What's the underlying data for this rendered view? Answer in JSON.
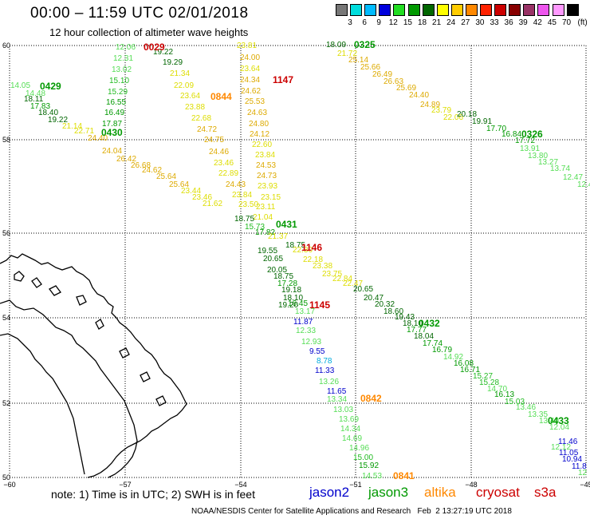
{
  "title": "00:00 – 11:59 UTC 02/01/2018",
  "subtitle": "12 hour collection of altimeter wave heights",
  "scale": {
    "unit_label": "(ft)",
    "labels": [
      "3",
      "6",
      "9",
      "12",
      "15",
      "18",
      "21",
      "24",
      "27",
      "30",
      "33",
      "36",
      "39",
      "42",
      "45",
      "70"
    ],
    "colors": [
      "#777777",
      "#00dddd",
      "#00bbff",
      "#0000dd",
      "#22dd22",
      "#009900",
      "#006600",
      "#ffff00",
      "#ffcc00",
      "#ff8800",
      "#ff2200",
      "#cc0000",
      "#880000",
      "#993366",
      "#ee55ee",
      "#ff99ff",
      "#000000"
    ]
  },
  "axes": {
    "lat_labels": [
      "60",
      "58",
      "56",
      "54",
      "52",
      "50"
    ],
    "lon_labels": [
      "−60",
      "−57",
      "−54",
      "−51",
      "−48",
      "−45"
    ]
  },
  "note": "note: 1) Time is in UTC; 2) SWH is in feet",
  "legend": [
    {
      "name": "jason2",
      "color": "#0000cc"
    },
    {
      "name": "jason3",
      "color": "#009900"
    },
    {
      "name": "altika",
      "color": "#ff8800"
    },
    {
      "name": "cryosat",
      "color": "#cc0000"
    },
    {
      "name": "s3a",
      "color": "#cc0000"
    }
  ],
  "credit": "NOAA/NESDIS Center for Satellite Applications and Research   Feb  2 13:27:19 UTC 2018",
  "time_labels": [
    {
      "text": "0029",
      "color": "#cc0000"
    },
    {
      "text": "0325",
      "color": "#009900"
    },
    {
      "text": "1147",
      "color": "#cc0000"
    },
    {
      "text": "0429",
      "color": "#009900"
    },
    {
      "text": "0844",
      "color": "#ff8800"
    },
    {
      "text": "0430",
      "color": "#009900"
    },
    {
      "text": "0326",
      "color": "#009900"
    },
    {
      "text": "0431",
      "color": "#009900"
    },
    {
      "text": "1146",
      "color": "#cc0000"
    },
    {
      "text": "1145",
      "color": "#cc0000"
    },
    {
      "text": "0432",
      "color": "#009900"
    },
    {
      "text": "0842",
      "color": "#ff8800"
    },
    {
      "text": "0433",
      "color": "#009900"
    },
    {
      "text": "0841",
      "color": "#ff8800"
    }
  ],
  "observations": [
    {
      "v": "12.06",
      "c": "#55dd55"
    },
    {
      "v": "12.31",
      "c": "#55dd55"
    },
    {
      "v": "13.02",
      "c": "#55dd55"
    },
    {
      "v": "15.10",
      "c": "#22bb22"
    },
    {
      "v": "15.29",
      "c": "#22bb22"
    },
    {
      "v": "16.55",
      "c": "#009900"
    },
    {
      "v": "16.49",
      "c": "#009900"
    },
    {
      "v": "17.87",
      "c": "#009900"
    },
    {
      "v": "19.22",
      "c": "#006600"
    },
    {
      "v": "19.29",
      "c": "#006600"
    },
    {
      "v": "21.34",
      "c": "#dddd00"
    },
    {
      "v": "22.09",
      "c": "#dddd00"
    },
    {
      "v": "23.64",
      "c": "#dddd00"
    },
    {
      "v": "23.88",
      "c": "#dddd00"
    },
    {
      "v": "22.68",
      "c": "#dddd00"
    },
    {
      "v": "24.72",
      "c": "#ddaa00"
    },
    {
      "v": "24.75",
      "c": "#ddaa00"
    },
    {
      "v": "24.46",
      "c": "#ddaa00"
    },
    {
      "v": "23.46",
      "c": "#dddd00"
    },
    {
      "v": "22.89",
      "c": "#dddd00"
    },
    {
      "v": "24.43",
      "c": "#ddaa00"
    },
    {
      "v": "23.84",
      "c": "#dddd00"
    },
    {
      "v": "23.50",
      "c": "#dddd00"
    },
    {
      "v": "14.05",
      "c": "#55dd55"
    },
    {
      "v": "14.48",
      "c": "#55dd55"
    },
    {
      "v": "18.11",
      "c": "#006600"
    },
    {
      "v": "17.83",
      "c": "#009900"
    },
    {
      "v": "18.40",
      "c": "#006600"
    },
    {
      "v": "19.22",
      "c": "#006600"
    },
    {
      "v": "21.14",
      "c": "#dddd00"
    },
    {
      "v": "22.71",
      "c": "#dddd00"
    },
    {
      "v": "24.40",
      "c": "#ddaa00"
    },
    {
      "v": "24.04",
      "c": "#ddaa00"
    },
    {
      "v": "26.42",
      "c": "#ddaa00"
    },
    {
      "v": "26.68",
      "c": "#ddaa00"
    },
    {
      "v": "24.62",
      "c": "#ddaa00"
    },
    {
      "v": "25.64",
      "c": "#ddaa00"
    },
    {
      "v": "25.64",
      "c": "#ddaa00"
    },
    {
      "v": "23.44",
      "c": "#dddd00"
    },
    {
      "v": "23.46",
      "c": "#dddd00"
    },
    {
      "v": "21.62",
      "c": "#dddd00"
    },
    {
      "v": "23.81",
      "c": "#dddd00"
    },
    {
      "v": "24.00",
      "c": "#ddaa00"
    },
    {
      "v": "23.64",
      "c": "#dddd00"
    },
    {
      "v": "24.34",
      "c": "#ddaa00"
    },
    {
      "v": "24.62",
      "c": "#ddaa00"
    },
    {
      "v": "25.53",
      "c": "#ddaa00"
    },
    {
      "v": "24.63",
      "c": "#ddaa00"
    },
    {
      "v": "24.80",
      "c": "#ddaa00"
    },
    {
      "v": "24.12",
      "c": "#ddaa00"
    },
    {
      "v": "22.60",
      "c": "#dddd00"
    },
    {
      "v": "23.84",
      "c": "#dddd00"
    },
    {
      "v": "24.53",
      "c": "#ddaa00"
    },
    {
      "v": "24.73",
      "c": "#ddaa00"
    },
    {
      "v": "23.93",
      "c": "#dddd00"
    },
    {
      "v": "23.15",
      "c": "#dddd00"
    },
    {
      "v": "23.11",
      "c": "#dddd00"
    },
    {
      "v": "21.04",
      "c": "#dddd00"
    },
    {
      "v": "18.09",
      "c": "#006600"
    },
    {
      "v": "21.72",
      "c": "#dddd00"
    },
    {
      "v": "25.14",
      "c": "#ddaa00"
    },
    {
      "v": "25.66",
      "c": "#ddaa00"
    },
    {
      "v": "26.49",
      "c": "#ddaa00"
    },
    {
      "v": "26.63",
      "c": "#ddaa00"
    },
    {
      "v": "25.69",
      "c": "#ddaa00"
    },
    {
      "v": "24.40",
      "c": "#ddaa00"
    },
    {
      "v": "24.89",
      "c": "#ddaa00"
    },
    {
      "v": "23.79",
      "c": "#dddd00"
    },
    {
      "v": "22.06",
      "c": "#dddd00"
    },
    {
      "v": "20.18",
      "c": "#006600"
    },
    {
      "v": "19.91",
      "c": "#006600"
    },
    {
      "v": "17.70",
      "c": "#009900"
    },
    {
      "v": "16.84",
      "c": "#009900"
    },
    {
      "v": "17.72",
      "c": "#009900"
    },
    {
      "v": "13.91",
      "c": "#55dd55"
    },
    {
      "v": "13.80",
      "c": "#55dd55"
    },
    {
      "v": "13.27",
      "c": "#55dd55"
    },
    {
      "v": "13.74",
      "c": "#55dd55"
    },
    {
      "v": "12.47",
      "c": "#55dd55"
    },
    {
      "v": "12.4",
      "c": "#55dd55"
    },
    {
      "v": "18.75",
      "c": "#006600"
    },
    {
      "v": "15.73",
      "c": "#22bb22"
    },
    {
      "v": "17.82",
      "c": "#009900"
    },
    {
      "v": "21.37",
      "c": "#dddd00"
    },
    {
      "v": "18.75",
      "c": "#006600"
    },
    {
      "v": "19.55",
      "c": "#006600"
    },
    {
      "v": "20.65",
      "c": "#006600"
    },
    {
      "v": "22.30",
      "c": "#dddd00"
    },
    {
      "v": "22.18",
      "c": "#dddd00"
    },
    {
      "v": "23.38",
      "c": "#dddd00"
    },
    {
      "v": "23.75",
      "c": "#dddd00"
    },
    {
      "v": "22.84",
      "c": "#dddd00"
    },
    {
      "v": "22.47",
      "c": "#dddd00"
    },
    {
      "v": "20.65",
      "c": "#006600"
    },
    {
      "v": "20.47",
      "c": "#006600"
    },
    {
      "v": "20.32",
      "c": "#006600"
    },
    {
      "v": "18.60",
      "c": "#006600"
    },
    {
      "v": "19.43",
      "c": "#006600"
    },
    {
      "v": "18.10",
      "c": "#006600"
    },
    {
      "v": "17.77",
      "c": "#009900"
    },
    {
      "v": "18.04",
      "c": "#006600"
    },
    {
      "v": "17.74",
      "c": "#009900"
    },
    {
      "v": "16.79",
      "c": "#009900"
    },
    {
      "v": "14.92",
      "c": "#55dd55"
    },
    {
      "v": "16.08",
      "c": "#009900"
    },
    {
      "v": "16.71",
      "c": "#009900"
    },
    {
      "v": "15.27",
      "c": "#22bb22"
    },
    {
      "v": "15.28",
      "c": "#22bb22"
    },
    {
      "v": "14.70",
      "c": "#55dd55"
    },
    {
      "v": "16.13",
      "c": "#009900"
    },
    {
      "v": "15.03",
      "c": "#22bb22"
    },
    {
      "v": "13.46",
      "c": "#55dd55"
    },
    {
      "v": "13.35",
      "c": "#55dd55"
    },
    {
      "v": "13.40",
      "c": "#55dd55"
    },
    {
      "v": "12.04",
      "c": "#55dd55"
    },
    {
      "v": "11.46",
      "c": "#0000cc"
    },
    {
      "v": "12.12",
      "c": "#55dd55"
    },
    {
      "v": "11.05",
      "c": "#0000cc"
    },
    {
      "v": "10.94",
      "c": "#0000cc"
    },
    {
      "v": "11.8",
      "c": "#0000cc"
    },
    {
      "v": "12",
      "c": "#55dd55"
    },
    {
      "v": "20.05",
      "c": "#006600"
    },
    {
      "v": "18.75",
      "c": "#006600"
    },
    {
      "v": "17.28",
      "c": "#009900"
    },
    {
      "v": "19.18",
      "c": "#006600"
    },
    {
      "v": "18.10",
      "c": "#006600"
    },
    {
      "v": "16.45",
      "c": "#009900"
    },
    {
      "v": "19.20",
      "c": "#006600"
    },
    {
      "v": "13.17",
      "c": "#55dd55"
    },
    {
      "v": "11.87",
      "c": "#0000cc"
    },
    {
      "v": "12.33",
      "c": "#55dd55"
    },
    {
      "v": "12.93",
      "c": "#55dd55"
    },
    {
      "v": "9.55",
      "c": "#0000cc"
    },
    {
      "v": "8.78",
      "c": "#00aadd"
    },
    {
      "v": "11.33",
      "c": "#0000cc"
    },
    {
      "v": "13.26",
      "c": "#55dd55"
    },
    {
      "v": "11.65",
      "c": "#0000cc"
    },
    {
      "v": "13.34",
      "c": "#55dd55"
    },
    {
      "v": "13.03",
      "c": "#55dd55"
    },
    {
      "v": "13.69",
      "c": "#55dd55"
    },
    {
      "v": "14.34",
      "c": "#55dd55"
    },
    {
      "v": "14.69",
      "c": "#55dd55"
    },
    {
      "v": "14.96",
      "c": "#55dd55"
    },
    {
      "v": "15.00",
      "c": "#22bb22"
    },
    {
      "v": "15.92",
      "c": "#009900"
    },
    {
      "v": "14.53",
      "c": "#55dd55"
    }
  ]
}
